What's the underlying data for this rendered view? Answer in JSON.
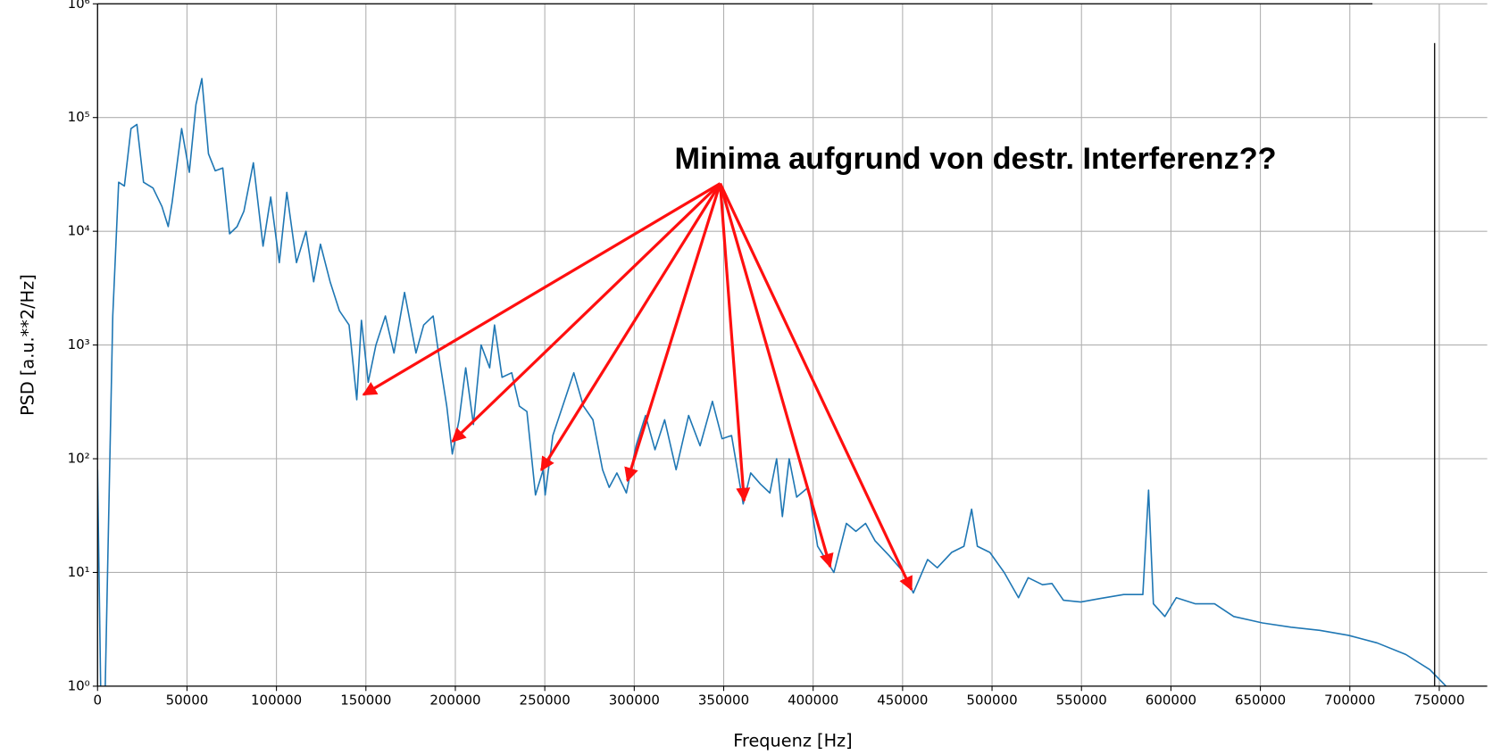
{
  "chart_data": {
    "type": "line",
    "xlabel": "Frequenz [Hz]",
    "ylabel": "PSD [a.u.**2/Hz]",
    "annotation": "Minima aufgrund von destr. Interferenz??",
    "color": "#1f77b4",
    "grid": true,
    "yscale": "log",
    "xlim": [
      0,
      776800
    ],
    "ylim": [
      1,
      1000000
    ],
    "xticks": [
      0,
      50000,
      100000,
      150000,
      200000,
      250000,
      300000,
      350000,
      400000,
      450000,
      500000,
      550000,
      600000,
      650000,
      700000,
      750000
    ],
    "yticks": [
      {
        "value": 1,
        "label": "10⁰"
      },
      {
        "value": 10,
        "label": "10¹"
      },
      {
        "value": 100,
        "label": "10²"
      },
      {
        "value": 1000,
        "label": "10³"
      },
      {
        "value": 10000,
        "label": "10⁴"
      },
      {
        "value": 100000,
        "label": "10⁵"
      },
      {
        "value": 1000000,
        "label": "10⁶"
      }
    ],
    "x": [
      0,
      2000,
      4300,
      8500,
      11800,
      15000,
      18700,
      22000,
      25700,
      31000,
      36000,
      39500,
      41700,
      47000,
      51300,
      55000,
      58300,
      62000,
      65800,
      70000,
      73800,
      78000,
      81800,
      87100,
      92500,
      96800,
      101600,
      105800,
      111200,
      116500,
      120800,
      124600,
      130000,
      135200,
      140600,
      144900,
      147500,
      151300,
      155600,
      160900,
      165700,
      171600,
      178000,
      182300,
      187600,
      191400,
      195200,
      198300,
      202100,
      205800,
      210100,
      214400,
      219200,
      221900,
      226100,
      231500,
      235800,
      240000,
      244800,
      249100,
      250200,
      254500,
      260900,
      266200,
      271600,
      276900,
      282300,
      286000,
      290300,
      295600,
      301000,
      306300,
      311600,
      317000,
      323400,
      330400,
      336800,
      343700,
      349100,
      354400,
      360900,
      365100,
      370500,
      375800,
      379600,
      382800,
      386600,
      390800,
      397200,
      402500,
      411600,
      418600,
      423900,
      429300,
      434600,
      442600,
      450700,
      456000,
      464000,
      469400,
      477400,
      484300,
      488600,
      491800,
      498800,
      506800,
      514800,
      520200,
      528200,
      533500,
      539900,
      549600,
      560300,
      573600,
      584300,
      587500,
      590200,
      596600,
      603000,
      613700,
      624400,
      635100,
      651100,
      667200,
      683200,
      699300,
      715300,
      731300,
      744700,
      753800
    ],
    "values": [
      80,
      0.5,
      1,
      1800,
      27000,
      25000,
      80000,
      87000,
      27000,
      24000,
      16500,
      11000,
      18000,
      80000,
      33000,
      130000,
      220000,
      48000,
      34000,
      36000,
      9500,
      11000,
      15000,
      40000,
      7400,
      20000,
      5300,
      22000,
      5300,
      10000,
      3600,
      7700,
      3600,
      2000,
      1500,
      330,
      1650,
      470,
      1000,
      1800,
      850,
      2900,
      850,
      1500,
      1800,
      700,
      290,
      110,
      220,
      630,
      200,
      1000,
      630,
      1500,
      520,
      570,
      290,
      260,
      48,
      80,
      48,
      160,
      320,
      570,
      290,
      220,
      80,
      56,
      75,
      50,
      130,
      240,
      120,
      220,
      80,
      240,
      130,
      320,
      150,
      160,
      40,
      75,
      60,
      50,
      100,
      31,
      100,
      46,
      56,
      17,
      10,
      27,
      23,
      27,
      19,
      14,
      10,
      6.6,
      13,
      11,
      15,
      17,
      36,
      17,
      15,
      10,
      6,
      9,
      7.8,
      8,
      5.7,
      5.5,
      5.9,
      6.4,
      6.4,
      53,
      5.3,
      4.1,
      6,
      5.3,
      5.3,
      4.1,
      3.6,
      3.3,
      3.1,
      2.8,
      2.4,
      1.9,
      1.4,
      1.0
    ]
  }
}
